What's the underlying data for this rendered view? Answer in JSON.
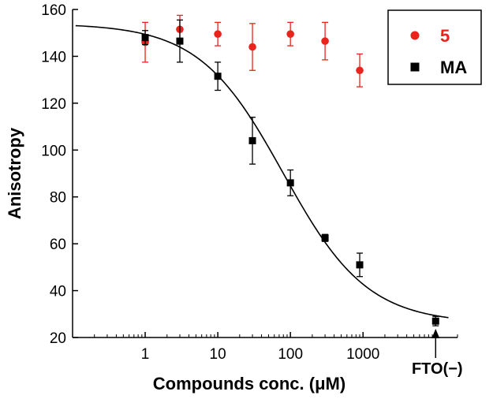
{
  "chart_data": {
    "type": "scatter",
    "title": "",
    "xlabel": "Compounds conc. (μM)",
    "ylabel": "Anisotropy",
    "xscale": "log",
    "xlim": [
      0.1,
      20000
    ],
    "ylim": [
      20,
      160
    ],
    "x_ticks": [
      1,
      10,
      100,
      1000
    ],
    "x_tick_labels": [
      "1",
      "10",
      "100",
      "1000"
    ],
    "y_ticks": [
      20,
      40,
      60,
      80,
      100,
      120,
      140,
      160
    ],
    "y_tick_labels": [
      "20",
      "40",
      "60",
      "80",
      "100",
      "120",
      "140",
      "160"
    ],
    "grid": false,
    "legend_position": "top-right",
    "series": [
      {
        "name": "5",
        "color": "#e8241c",
        "marker": "circle",
        "x": [
          1,
          3,
          10,
          30,
          100,
          300,
          900
        ],
        "y": [
          146,
          151.5,
          149.5,
          144,
          149.5,
          146.5,
          134
        ],
        "error": [
          8.5,
          6,
          5,
          10,
          5,
          8,
          7
        ]
      },
      {
        "name": "MA",
        "color": "#000000",
        "marker": "square",
        "x": [
          1,
          3,
          10,
          30,
          100,
          300,
          900,
          10000
        ],
        "y": [
          148,
          146.5,
          131.5,
          104,
          86,
          62.5,
          51,
          27
        ],
        "error": [
          3,
          9,
          6,
          10,
          5.5,
          1.5,
          5,
          2
        ]
      }
    ],
    "fit_curve": {
      "series": "MA",
      "color": "#000000",
      "model": "four-parameter logistic",
      "top": 154,
      "bottom": 26,
      "ic50": 80,
      "hill": 0.75
    },
    "annotations": [
      {
        "text": "FTO(−)",
        "x": 10000,
        "arrow": "up"
      }
    ]
  }
}
